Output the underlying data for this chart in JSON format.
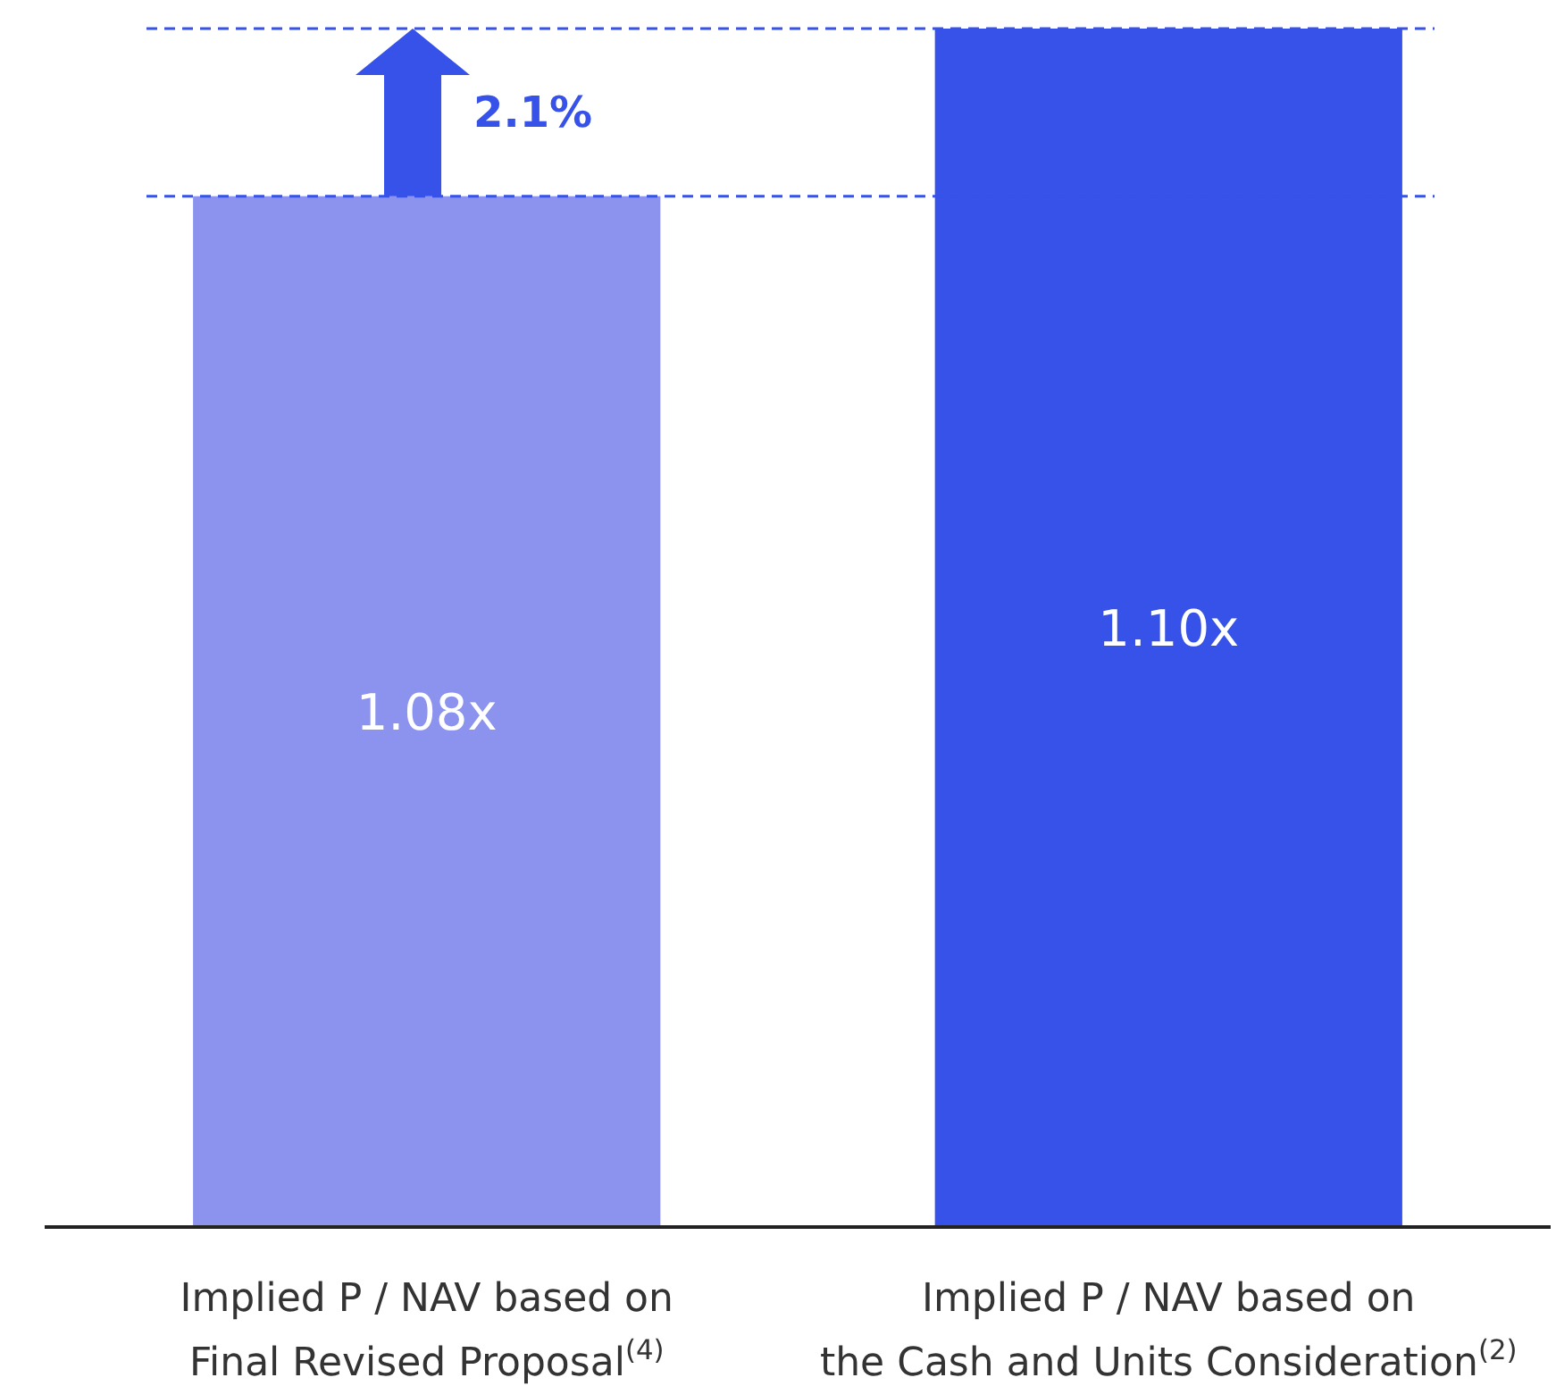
{
  "chart_data": {
    "type": "bar",
    "categories": [
      "Implied P / NAV based on\nFinal Revised Proposal$^{(4)}$",
      "Implied P / NAV based on\nthe Cash and Units Consideration$^{(2)}$"
    ],
    "values": [
      1.08,
      1.1
    ],
    "colors": [
      "#8b93ee",
      "#3652e8"
    ],
    "value_labels": [
      "1.08x",
      "1.10x"
    ],
    "ylim": [
      0.957,
      1.1
    ],
    "ref_lines": [
      {
        "axis": "y",
        "value": 1.08,
        "color": "#3652e8",
        "line_style": "dashed"
      },
      {
        "axis": "y",
        "value": 1.1,
        "color": "#3652e8",
        "line_style": "dashed"
      }
    ],
    "annotations": [
      "2.1%"
    ]
  }
}
